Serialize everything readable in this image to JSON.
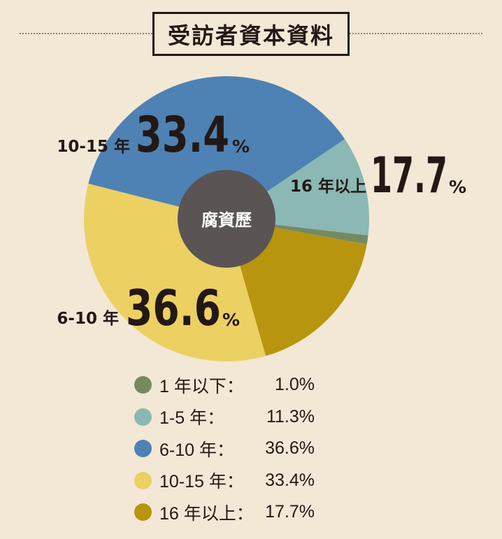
{
  "title": "受訪者資本資料",
  "center_label": "腐資歷",
  "callouts": [
    {
      "label": "10-15 年",
      "number": "33.4",
      "unit": "%"
    },
    {
      "label": "16 年以上",
      "number": "17.7",
      "unit": "%"
    },
    {
      "label": "6-10 年",
      "number": "36.6",
      "unit": "%"
    }
  ],
  "legend": [
    {
      "label": "1 年以下：",
      "value": "1.0%",
      "color": "#748a63"
    },
    {
      "label": "1-5 年：",
      "value": "11.3%",
      "color": "#8bb8b4"
    },
    {
      "label": "6-10 年：",
      "value": "36.6%",
      "color": "#4e82b4"
    },
    {
      "label": "10-15 年：",
      "value": "33.4%",
      "color": "#ecd062"
    },
    {
      "label": "16 年以上：",
      "value": "17.7%",
      "color": "#b8950f"
    }
  ],
  "chart_data": {
    "type": "pie",
    "categories": [
      "1 年以下",
      "1-5 年",
      "6-10 年",
      "10-15 年",
      "16 年以上"
    ],
    "values": [
      1.0,
      11.3,
      36.6,
      33.4,
      17.7
    ],
    "colors": [
      "#748a63",
      "#8bb8b4",
      "#4e82b4",
      "#ecd062",
      "#b8950f"
    ],
    "legend_position": "bottom"
  }
}
